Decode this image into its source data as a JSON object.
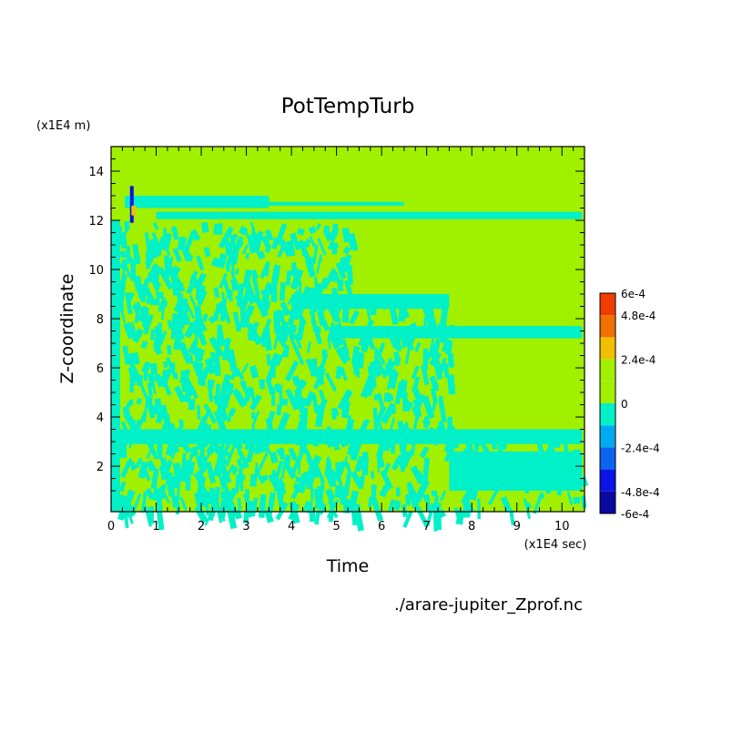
{
  "chart_data": {
    "type": "heatmap",
    "title": "PotTempTurb",
    "xlabel": "Time",
    "ylabel": "Z-coordinate",
    "x_unit": "(x1E4 sec)",
    "y_unit": "(x1E4 m)",
    "source_file": "./arare-jupiter_Zprof.nc",
    "xlim": [
      0,
      10.5
    ],
    "ylim": [
      0.15,
      15
    ],
    "x_ticks": [
      "0",
      "1",
      "2",
      "3",
      "4",
      "5",
      "6",
      "7",
      "8",
      "9",
      "10"
    ],
    "y_ticks": [
      "2",
      "4",
      "6",
      "8",
      "10",
      "12",
      "14"
    ],
    "colorbar": {
      "range": [
        -0.0006,
        0.0006
      ],
      "labels": [
        "6e-4",
        "4.8e-4",
        "2.4e-4",
        "0",
        "-2.4e-4",
        "-4.8e-4",
        "-6e-4"
      ],
      "levels": [
        {
          "lo": -0.0006,
          "hi": -0.00048,
          "color": "#0a0aa0"
        },
        {
          "lo": -0.00048,
          "hi": -0.00036,
          "color": "#0a14e6"
        },
        {
          "lo": -0.00036,
          "hi": -0.00024,
          "color": "#0a64f0"
        },
        {
          "lo": -0.00024,
          "hi": -0.00012,
          "color": "#00aaf0"
        },
        {
          "lo": -0.00012,
          "hi": 0.0,
          "color": "#00f0c8"
        },
        {
          "lo": 0.0,
          "hi": 0.00012,
          "color": "#a0f000"
        },
        {
          "lo": 0.00012,
          "hi": 0.00024,
          "color": "#a0f000"
        },
        {
          "lo": 0.00024,
          "hi": 0.00036,
          "color": "#f0c000"
        },
        {
          "lo": 0.00036,
          "hi": 0.00048,
          "color": "#f07000"
        },
        {
          "lo": 0.00048,
          "hi": 0.0006,
          "color": "#f03c00"
        }
      ]
    },
    "background_color": "#a0f000",
    "negative_color": "#00f0c8",
    "regions": [
      {
        "kind": "band",
        "x": [
          1.0,
          10.45
        ],
        "y": [
          12.05,
          12.35
        ],
        "value": -0.0001
      },
      {
        "kind": "band",
        "x": [
          0.3,
          3.5
        ],
        "y": [
          12.5,
          13.0
        ],
        "value": -0.0001
      },
      {
        "kind": "band",
        "x": [
          2.5,
          6.5
        ],
        "y": [
          12.6,
          12.75
        ],
        "value": -0.0001
      },
      {
        "kind": "band",
        "x": [
          5.0,
          10.45
        ],
        "y": [
          7.2,
          7.7
        ],
        "value": -0.0001
      },
      {
        "kind": "band",
        "x": [
          4.0,
          7.5
        ],
        "y": [
          8.4,
          9.0
        ],
        "value": -0.0001
      },
      {
        "kind": "band",
        "x": [
          0.0,
          10.45
        ],
        "y": [
          2.9,
          3.5
        ],
        "value": -0.0001
      },
      {
        "kind": "band",
        "x": [
          7.5,
          10.45
        ],
        "y": [
          1.0,
          2.6
        ],
        "value": -0.0001
      },
      {
        "kind": "band",
        "x": [
          0.0,
          0.2
        ],
        "y": [
          0.15,
          12.0
        ],
        "value": -0.0001
      },
      {
        "kind": "turbulent",
        "x": [
          0.1,
          5.3
        ],
        "y": [
          0.15,
          12.0
        ],
        "density": 0.38,
        "value": -0.0001
      },
      {
        "kind": "turbulent",
        "x": [
          5.3,
          7.5
        ],
        "y": [
          0.15,
          9.0
        ],
        "density": 0.28,
        "value": -0.0001
      },
      {
        "kind": "turbulent",
        "x": [
          7.5,
          10.45
        ],
        "y": [
          0.15,
          3.5
        ],
        "density": 0.18,
        "value": -0.0001
      },
      {
        "kind": "spot",
        "x": [
          0.42,
          0.5
        ],
        "y": [
          11.9,
          13.4
        ],
        "value": -0.00045
      },
      {
        "kind": "spot",
        "x": [
          0.45,
          0.55
        ],
        "y": [
          12.2,
          12.6
        ],
        "value": 0.00035
      }
    ]
  }
}
